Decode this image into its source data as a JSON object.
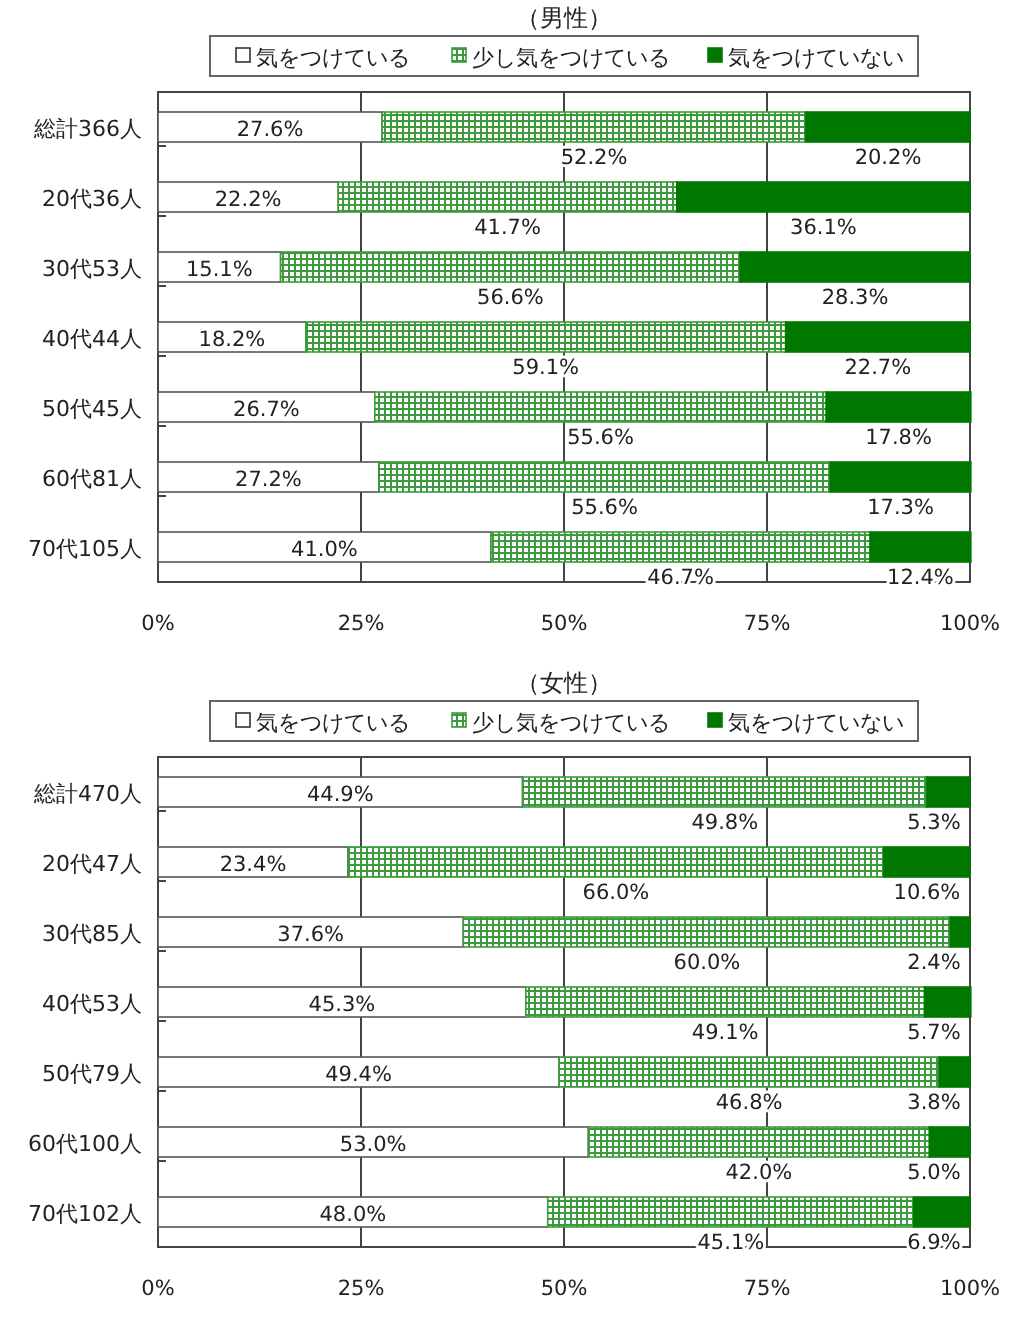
{
  "chart_data": [
    {
      "type": "bar",
      "orientation": "horizontal",
      "stacked": true,
      "title": "（男性）",
      "categories": [
        "総計366人",
        "20代36人",
        "30代53人",
        "40代44人",
        "50代45人",
        "60代81人",
        "70代105人"
      ],
      "series": [
        {
          "name": "気をつけている",
          "color": "#ffffff",
          "values": [
            27.6,
            22.2,
            15.1,
            18.2,
            26.7,
            27.2,
            41.0
          ],
          "value_labels": [
            "27.6%",
            "22.2%",
            "15.1%",
            "18.2%",
            "26.7%",
            "27.2%",
            "41.0%"
          ]
        },
        {
          "name": "少し気をつけている",
          "color": "#3c9a3c",
          "values": [
            52.2,
            41.7,
            56.6,
            59.1,
            55.6,
            55.6,
            46.7
          ],
          "value_labels": [
            "52.2%",
            "41.7%",
            "56.6%",
            "59.1%",
            "55.6%",
            "55.6%",
            "46.7%"
          ]
        },
        {
          "name": "気をつけていない",
          "color": "#007800",
          "values": [
            20.2,
            36.1,
            28.3,
            22.7,
            17.8,
            17.3,
            12.4
          ],
          "value_labels": [
            "20.2%",
            "36.1%",
            "28.3%",
            "22.7%",
            "17.8%",
            "17.3%",
            "12.4%"
          ]
        }
      ],
      "xlim": [
        0,
        100
      ],
      "xticks": [
        {
          "value": 0,
          "label": "0%"
        },
        {
          "value": 25,
          "label": "25%"
        },
        {
          "value": 50,
          "label": "50%"
        },
        {
          "value": 75,
          "label": "75%"
        },
        {
          "value": 100,
          "label": "100%"
        }
      ],
      "grid": "x",
      "legend": "top"
    },
    {
      "type": "bar",
      "orientation": "horizontal",
      "stacked": true,
      "title": "（女性）",
      "categories": [
        "総計470人",
        "20代47人",
        "30代85人",
        "40代53人",
        "50代79人",
        "60代100人",
        "70代102人"
      ],
      "series": [
        {
          "name": "気をつけている",
          "color": "#ffffff",
          "values": [
            44.9,
            23.4,
            37.6,
            45.3,
            49.4,
            53.0,
            48.0
          ],
          "value_labels": [
            "44.9%",
            "23.4%",
            "37.6%",
            "45.3%",
            "49.4%",
            "53.0%",
            "48.0%"
          ]
        },
        {
          "name": "少し気をつけている",
          "color": "#3c9a3c",
          "values": [
            49.8,
            66.0,
            60.0,
            49.1,
            46.8,
            42.0,
            45.1
          ],
          "value_labels": [
            "49.8%",
            "66.0%",
            "60.0%",
            "49.1%",
            "46.8%",
            "42.0%",
            "45.1%"
          ]
        },
        {
          "name": "気をつけていない",
          "color": "#007800",
          "values": [
            5.3,
            10.6,
            2.4,
            5.7,
            3.8,
            5.0,
            6.9
          ],
          "value_labels": [
            "5.3%",
            "10.6%",
            "2.4%",
            "5.7%",
            "3.8%",
            "5.0%",
            "6.9%"
          ]
        }
      ],
      "xlim": [
        0,
        100
      ],
      "xticks": [
        {
          "value": 0,
          "label": "0%"
        },
        {
          "value": 25,
          "label": "25%"
        },
        {
          "value": 50,
          "label": "50%"
        },
        {
          "value": 75,
          "label": "75%"
        },
        {
          "value": 100,
          "label": "100%"
        }
      ],
      "grid": "x",
      "legend": "top"
    }
  ]
}
